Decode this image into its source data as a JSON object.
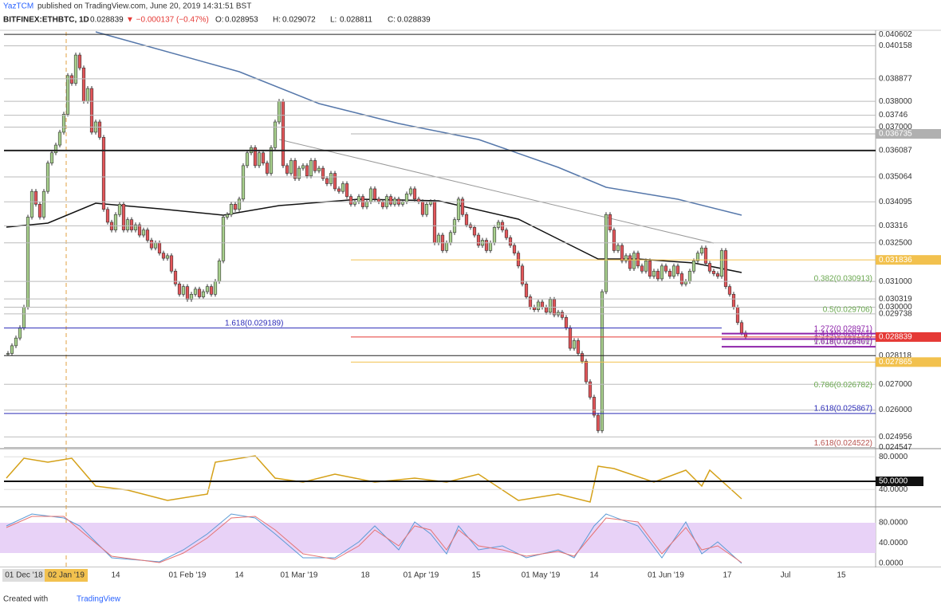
{
  "header": {
    "publisher": "YazTCM",
    "published": "published on TradingView.com, June 20, 2019 14:31:51 BST",
    "symbol": "BITFINEX:ETHBTC, 1D",
    "last": "0.028839",
    "change": "▼ −0.000137 (−0.47%)",
    "ohlc": [
      {
        "key": "O:",
        "value": "0.028953"
      },
      {
        "key": "H:",
        "value": "0.029072"
      },
      {
        "key": "L:",
        "value": "0.028811"
      },
      {
        "key": "C:",
        "value": "0.028839"
      }
    ]
  },
  "chart_data": {
    "type": "candlestick",
    "up_color": "#a9d18e",
    "down_color": "#e4565a",
    "ylim": [
      0.0407,
      0.0245
    ],
    "yticks": [
      0.040602,
      0.040158,
      0.038877,
      {
        "value": 0.038,
        "label": "0.038000"
      },
      0.03746,
      {
        "value": 0.037,
        "label": "0.037000"
      },
      0.036087,
      0.035064,
      0.034095,
      0.03316,
      {
        "value": 0.0325,
        "label": "0.032500"
      },
      {
        "value": 0.031,
        "label": "0.031000"
      },
      0.030319,
      {
        "value": 0.03,
        "label": "0.030000"
      },
      0.029738,
      0.028118,
      {
        "value": 0.027,
        "label": "0.027000"
      },
      {
        "value": 0.026,
        "label": "0.026000"
      },
      0.024956,
      0.024547
    ],
    "price_markers": [
      {
        "value": 0.036735,
        "label": "0.036735",
        "color": "#b0b0b0"
      },
      {
        "value": 0.031836,
        "label": "0.031836",
        "color": "#f2c14e"
      },
      {
        "value": 0.028839,
        "label": "0.028839",
        "color": "#e53935"
      },
      {
        "value": 0.027865,
        "label": "0.027865",
        "color": "#f2c14e"
      }
    ],
    "levels": [
      {
        "label": "0.382(0.030913)",
        "value": 0.030913,
        "color": "#6aa84f",
        "line": false
      },
      {
        "label": "0.5(0.029706)",
        "value": 0.029706,
        "color": "#6aa84f",
        "line": false
      },
      {
        "label": "0.618(0.028500)",
        "value": 0.0285,
        "color": "#999999",
        "line": false
      },
      {
        "label": "0.786(0.026782)",
        "value": 0.026782,
        "color": "#6aa84f",
        "line": false
      },
      {
        "label": "1.618(0.025867)",
        "value": 0.025867,
        "color": "#2b2bb8",
        "line": true
      },
      {
        "label": "1.618(0.024522)",
        "value": 0.024522,
        "color": "#b85450",
        "line": false
      },
      {
        "label": "1.618(0.029189)",
        "value": 0.029189,
        "color": "#2b2bb8",
        "line": true
      },
      {
        "label": "1.272(0.028971)",
        "value": 0.028971,
        "color": "#8e24aa",
        "line": true
      },
      {
        "label": "1.414(0.028761)",
        "value": 0.028761,
        "color": "#8e24aa",
        "line": true
      },
      {
        "label": "1.618(0.028461)",
        "value": 0.028461,
        "color": "#8e24aa",
        "line": true
      }
    ],
    "close": [
      0.0282,
      0.0285,
      0.0288,
      0.0292,
      0.03,
      0.0335,
      0.0345,
      0.034,
      0.0335,
      0.0345,
      0.0356,
      0.036,
      0.0363,
      0.0368,
      0.0375,
      0.039,
      0.0387,
      0.0398,
      0.0393,
      0.038,
      0.0385,
      0.0368,
      0.0372,
      0.0366,
      0.0338,
      0.0333,
      0.033,
      0.0336,
      0.034,
      0.033,
      0.0334,
      0.033,
      0.0332,
      0.0328,
      0.033,
      0.0326,
      0.0323,
      0.0325,
      0.0321,
      0.0319,
      0.032,
      0.0314,
      0.0309,
      0.0305,
      0.0308,
      0.0303,
      0.0305,
      0.0307,
      0.0304,
      0.0306,
      0.0308,
      0.0305,
      0.031,
      0.0318,
      0.0335,
      0.0336,
      0.034,
      0.0338,
      0.0342,
      0.0355,
      0.036,
      0.0362,
      0.0355,
      0.036,
      0.0356,
      0.0352,
      0.0362,
      0.0372,
      0.038,
      0.0355,
      0.0352,
      0.0357,
      0.035,
      0.0354,
      0.0355,
      0.0351,
      0.0357,
      0.0353,
      0.0354,
      0.035,
      0.0348,
      0.0352,
      0.0346,
      0.0345,
      0.0348,
      0.0343,
      0.034,
      0.0341,
      0.0343,
      0.0339,
      0.0341,
      0.0346,
      0.0342,
      0.0341,
      0.0339,
      0.0343,
      0.034,
      0.0342,
      0.034,
      0.0341,
      0.0344,
      0.0346,
      0.0342,
      0.0341,
      0.0336,
      0.034,
      0.0341,
      0.0325,
      0.0328,
      0.0322,
      0.0325,
      0.0329,
      0.0334,
      0.0342,
      0.0336,
      0.0332,
      0.0331,
      0.0328,
      0.0324,
      0.0326,
      0.0322,
      0.0325,
      0.0331,
      0.0333,
      0.033,
      0.0327,
      0.0324,
      0.0321,
      0.0316,
      0.0309,
      0.0304,
      0.03,
      0.0299,
      0.0302,
      0.03,
      0.0298,
      0.0303,
      0.0297,
      0.0298,
      0.0296,
      0.0292,
      0.0284,
      0.0287,
      0.0282,
      0.0279,
      0.0271,
      0.0265,
      0.0258,
      0.0252,
      0.0306,
      0.0336,
      0.033,
      0.0322,
      0.0324,
      0.0318,
      0.032,
      0.0315,
      0.0321,
      0.0316,
      0.0314,
      0.0318,
      0.0312,
      0.0314,
      0.0311,
      0.0316,
      0.0314,
      0.0312,
      0.0316,
      0.0313,
      0.0309,
      0.031,
      0.0314,
      0.0318,
      0.0321,
      0.0323,
      0.0317,
      0.0314,
      0.0313,
      0.0312,
      0.0322,
      0.0308,
      0.0305,
      0.03,
      0.0294,
      0.029,
      0.028839
    ],
    "x_labels": [
      "01 Dec '18",
      "02 Jan '19",
      "14",
      "01 Feb '19",
      "14",
      "01 Mar '19",
      "18",
      "01 Apr '19",
      "15",
      "01 May '19",
      "14",
      "01 Jun '19",
      "17",
      "Jul",
      "15"
    ],
    "rsi": {
      "yticks": [
        {
          "value": 80,
          "label": "80.0000"
        },
        {
          "value": 40,
          "label": "40.0000"
        }
      ],
      "marker": {
        "value": 50,
        "label": "50.0000"
      }
    },
    "stoch": {
      "yticks": [
        {
          "value": 80,
          "label": "80.0000"
        },
        {
          "value": 40,
          "label": "40.0000"
        },
        {
          "value": 0,
          "label": "0.0000"
        }
      ]
    }
  },
  "footer": {
    "created": "Created with",
    "brand": "TradingView"
  }
}
